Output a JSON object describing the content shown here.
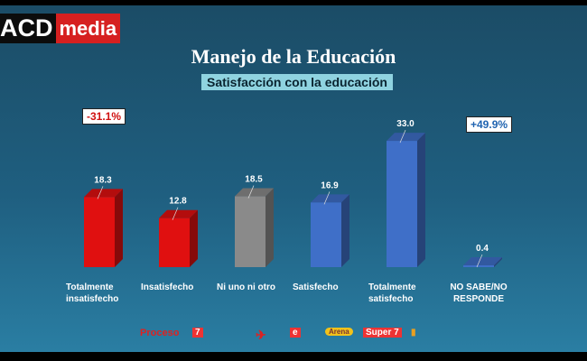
{
  "brand": {
    "left": "ACD",
    "right": "media"
  },
  "chart_data": {
    "type": "bar",
    "title": "Manejo de la Educación",
    "subtitle": "Satisfacción con la educación",
    "categories": [
      "Totalmente insatisfecho",
      "Insatisfecho",
      "Ni uno ni otro",
      "Satisfecho",
      "Totalmente satisfecho",
      "NO SABE/NO RESPONDE"
    ],
    "values": [
      18.3,
      12.8,
      18.5,
      16.9,
      33.0,
      0.4
    ],
    "labels": [
      "18.3",
      "12.8",
      "18.5",
      "16.9",
      "33.0",
      "0.4"
    ],
    "colors": [
      "#e01010",
      "#e01010",
      "#8a8a8a",
      "#3f6fc8",
      "#3f6fc8",
      "#3f6fc8"
    ],
    "ylim": [
      0,
      35
    ],
    "annotations": {
      "negative": "-31.1%",
      "positive": "+49.9%",
      "negative_color": "#d01010",
      "positive_color": "#1f63b0"
    }
  },
  "sponsors": [
    "Proceso",
    "7",
    "e",
    "Arena",
    "Super 7"
  ]
}
